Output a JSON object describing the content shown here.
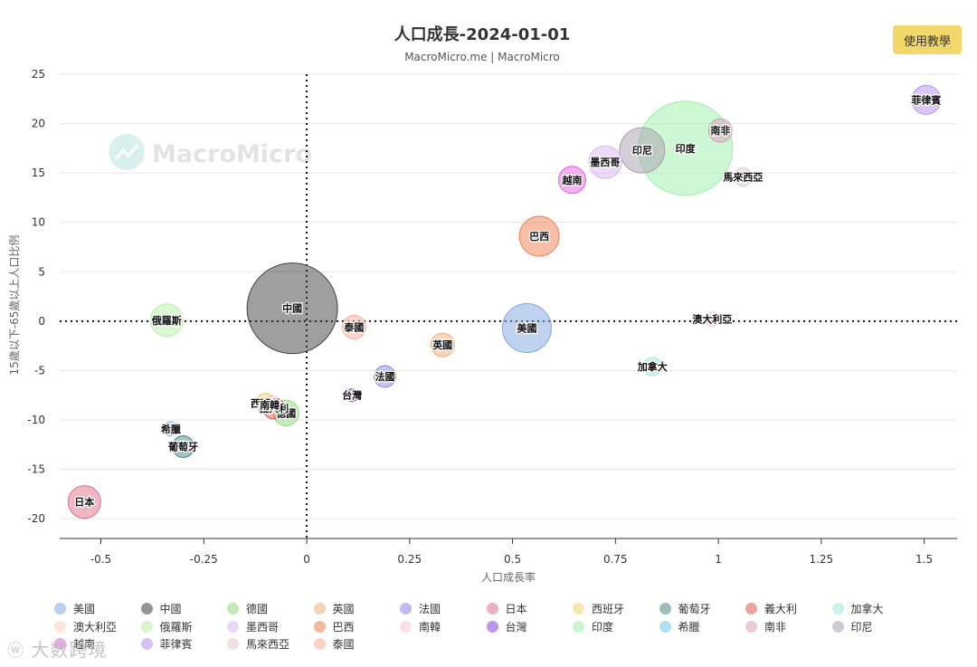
{
  "help_button_label": "使用教學",
  "watermark": {
    "icon": "weibo-icon",
    "text": "大数跨境"
  },
  "logo_text": "MacroMicro",
  "chart_data": {
    "type": "scatter",
    "title": "人口成長-2024-01-01",
    "subtitle": "MacroMicro.me | MacroMicro",
    "xlabel": "人口成長率",
    "ylabel": "15歲以下-65歲以上人口比例",
    "xlim": [
      -0.6,
      1.58
    ],
    "ylim": [
      -22,
      25
    ],
    "xticks": [
      -0.5,
      -0.25,
      0,
      0.25,
      0.5,
      0.75,
      1,
      1.25,
      1.5
    ],
    "xtick_labels": [
      "-0.5",
      "-0.25",
      "0",
      "0.25",
      "0.5",
      "0.75",
      "1",
      "1.25",
      "1.5"
    ],
    "yticks": [
      25,
      20,
      15,
      10,
      5,
      0,
      -5,
      -10,
      -15,
      -20
    ],
    "ytick_labels": [
      "25",
      "20",
      "15",
      "10",
      "5",
      "0",
      "-5",
      "-10",
      "-15",
      "-20"
    ],
    "series": [
      {
        "name": "美國",
        "x": 0.535,
        "y": -0.7,
        "size": 27,
        "color": "#7fa8e0"
      },
      {
        "name": "中國",
        "x": -0.035,
        "y": 1.3,
        "size": 50,
        "color": "#404040"
      },
      {
        "name": "德國",
        "x": -0.05,
        "y": -9.3,
        "size": 14,
        "color": "#8fdc7f"
      },
      {
        "name": "英國",
        "x": 0.33,
        "y": -2.4,
        "size": 13,
        "color": "#f0b07a"
      },
      {
        "name": "法國",
        "x": 0.19,
        "y": -5.6,
        "size": 12,
        "color": "#8a8ae0"
      },
      {
        "name": "日本",
        "x": -0.54,
        "y": -18.3,
        "size": 18,
        "color": "#e0708a"
      },
      {
        "name": "西班牙",
        "x": -0.1,
        "y": -8.3,
        "size": 11,
        "color": "#e8d870"
      },
      {
        "name": "葡萄牙",
        "x": -0.3,
        "y": -12.7,
        "size": 12,
        "color": "#4a8a80"
      },
      {
        "name": "義大利",
        "x": -0.08,
        "y": -8.8,
        "size": 12,
        "color": "#e05a50"
      },
      {
        "name": "加拿大",
        "x": 0.84,
        "y": -4.6,
        "size": 10,
        "color": "#a0e8e0"
      },
      {
        "name": "澳大利亞",
        "x": 0.985,
        "y": 0.2,
        "size": 8,
        "color": "#f8d0c0"
      },
      {
        "name": "俄羅斯",
        "x": -0.34,
        "y": 0.1,
        "size": 18,
        "color": "#b8f0a8"
      },
      {
        "name": "墨西哥",
        "x": 0.725,
        "y": 16.1,
        "size": 18,
        "color": "#d8b8f0"
      },
      {
        "name": "巴西",
        "x": 0.565,
        "y": 8.6,
        "size": 22,
        "color": "#f08050"
      },
      {
        "name": "南韓",
        "x": -0.09,
        "y": -8.5,
        "size": 10,
        "color": "#f8c8dc"
      },
      {
        "name": "台灣",
        "x": 0.11,
        "y": -7.5,
        "size": 7,
        "color": "#8040e0"
      },
      {
        "name": "印度",
        "x": 0.92,
        "y": 17.5,
        "size": 52,
        "color": "#9df0a8"
      },
      {
        "name": "希臘",
        "x": -0.33,
        "y": -10.9,
        "size": 8,
        "color": "#70c8f0"
      },
      {
        "name": "南非",
        "x": 1.005,
        "y": 19.3,
        "size": 13,
        "color": "#d8a0b8"
      },
      {
        "name": "印尼",
        "x": 0.815,
        "y": 17.3,
        "size": 25,
        "color": "#a8a0b0"
      },
      {
        "name": "越南",
        "x": 0.645,
        "y": 14.3,
        "size": 15,
        "color": "#e860e0"
      },
      {
        "name": "菲律賓",
        "x": 1.505,
        "y": 22.4,
        "size": 16,
        "color": "#b890f0"
      },
      {
        "name": "馬來西亞",
        "x": 1.06,
        "y": 14.6,
        "size": 10,
        "color": "#e8c8c8"
      },
      {
        "name": "泰國",
        "x": 0.115,
        "y": -0.6,
        "size": 13,
        "color": "#f8b098"
      }
    ]
  }
}
